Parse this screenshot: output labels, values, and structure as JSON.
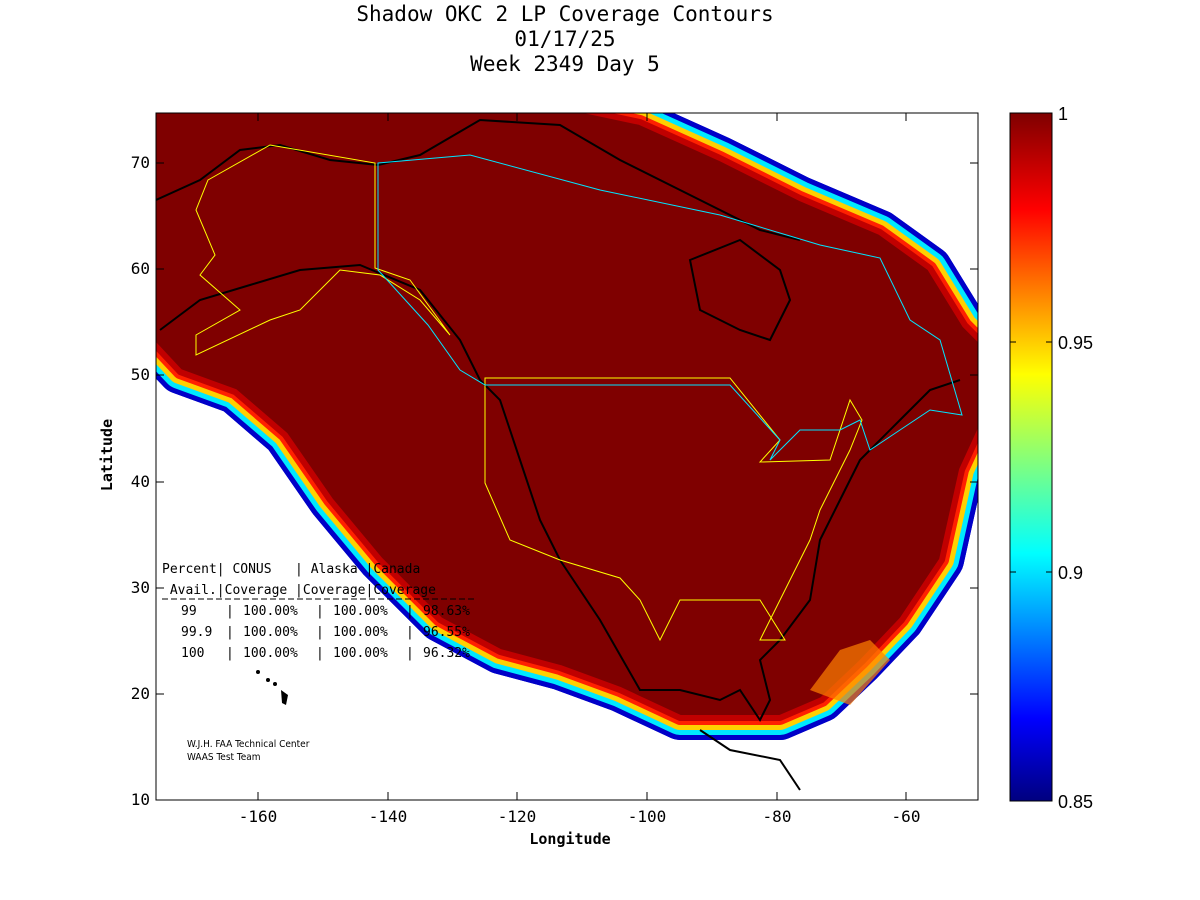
{
  "header": {
    "title": "Shadow OKC 2 LP Coverage Contours",
    "date": "01/17/25",
    "week_day": "Week 2349 Day 5"
  },
  "chart_data": {
    "type": "heatmap",
    "title": "Shadow OKC 2 LP Coverage Contours",
    "xlabel": "Longitude",
    "ylabel": "Latitude",
    "xlim": [
      -176,
      -49
    ],
    "ylim": [
      10,
      75
    ],
    "xticks": [
      "-160",
      "-140",
      "-120",
      "-100",
      "-80",
      "-60"
    ],
    "yticks": [
      "10",
      "20",
      "30",
      "40",
      "50",
      "60",
      "70"
    ],
    "colorbar": {
      "range": [
        0.85,
        1
      ],
      "ticks": [
        "1",
        "0.95",
        "0.9",
        "0.85"
      ],
      "colormap": "jet"
    },
    "coverage_table": {
      "header1": "Percent| CONUS   | Alaska |Canada",
      "header2": " Avail.|Coverage |Coverage|Coverage",
      "rows": [
        {
          "avail": "99",
          "conus": "100.00%",
          "alaska": "100.00%",
          "canada": "98.63%"
        },
        {
          "avail": "99.9",
          "conus": "100.00%",
          "alaska": "100.00%",
          "canada": "96.55%"
        },
        {
          "avail": "100",
          "conus": "100.00%",
          "alaska": "100.00%",
          "canada": "96.32%"
        }
      ]
    },
    "credits": [
      "W.J.H. FAA Technical Center",
      "WAAS Test Team"
    ]
  },
  "colors": {
    "full_coverage": "#7f0000",
    "conus_boundary": "#ffff00",
    "canada_boundary": "#00e5ff"
  }
}
